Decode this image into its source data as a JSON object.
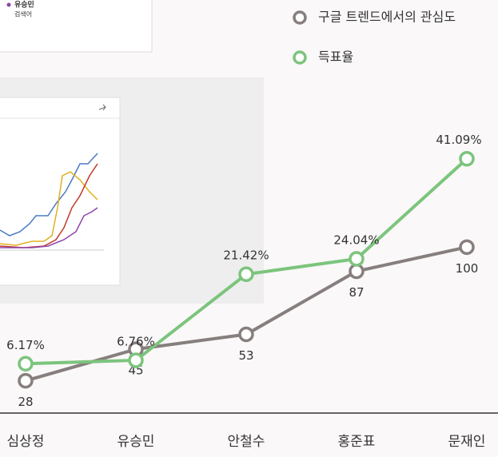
{
  "chart_data": {
    "type": "line",
    "categories": [
      "심상정",
      "유승민",
      "안철수",
      "홍준표",
      "문재인"
    ],
    "series": [
      {
        "name": "구글 트렌드에서의 관심도",
        "color": "#877e7e",
        "values": [
          28,
          45,
          53,
          87,
          100
        ]
      },
      {
        "name": "득표율",
        "color": "#7cc47d",
        "axis": "y2",
        "values": [
          6.17,
          6.76,
          21.42,
          24.04,
          41.09
        ],
        "value_labels": [
          "6.17%",
          "6.76%",
          "21.42%",
          "24.04%",
          "41.09%"
        ]
      }
    ],
    "ylim": [
      5,
      160
    ],
    "y2lim": [
      -4,
      45
    ]
  },
  "inset": {
    "legend_name": "유승민",
    "legend_sub": "검색어"
  }
}
